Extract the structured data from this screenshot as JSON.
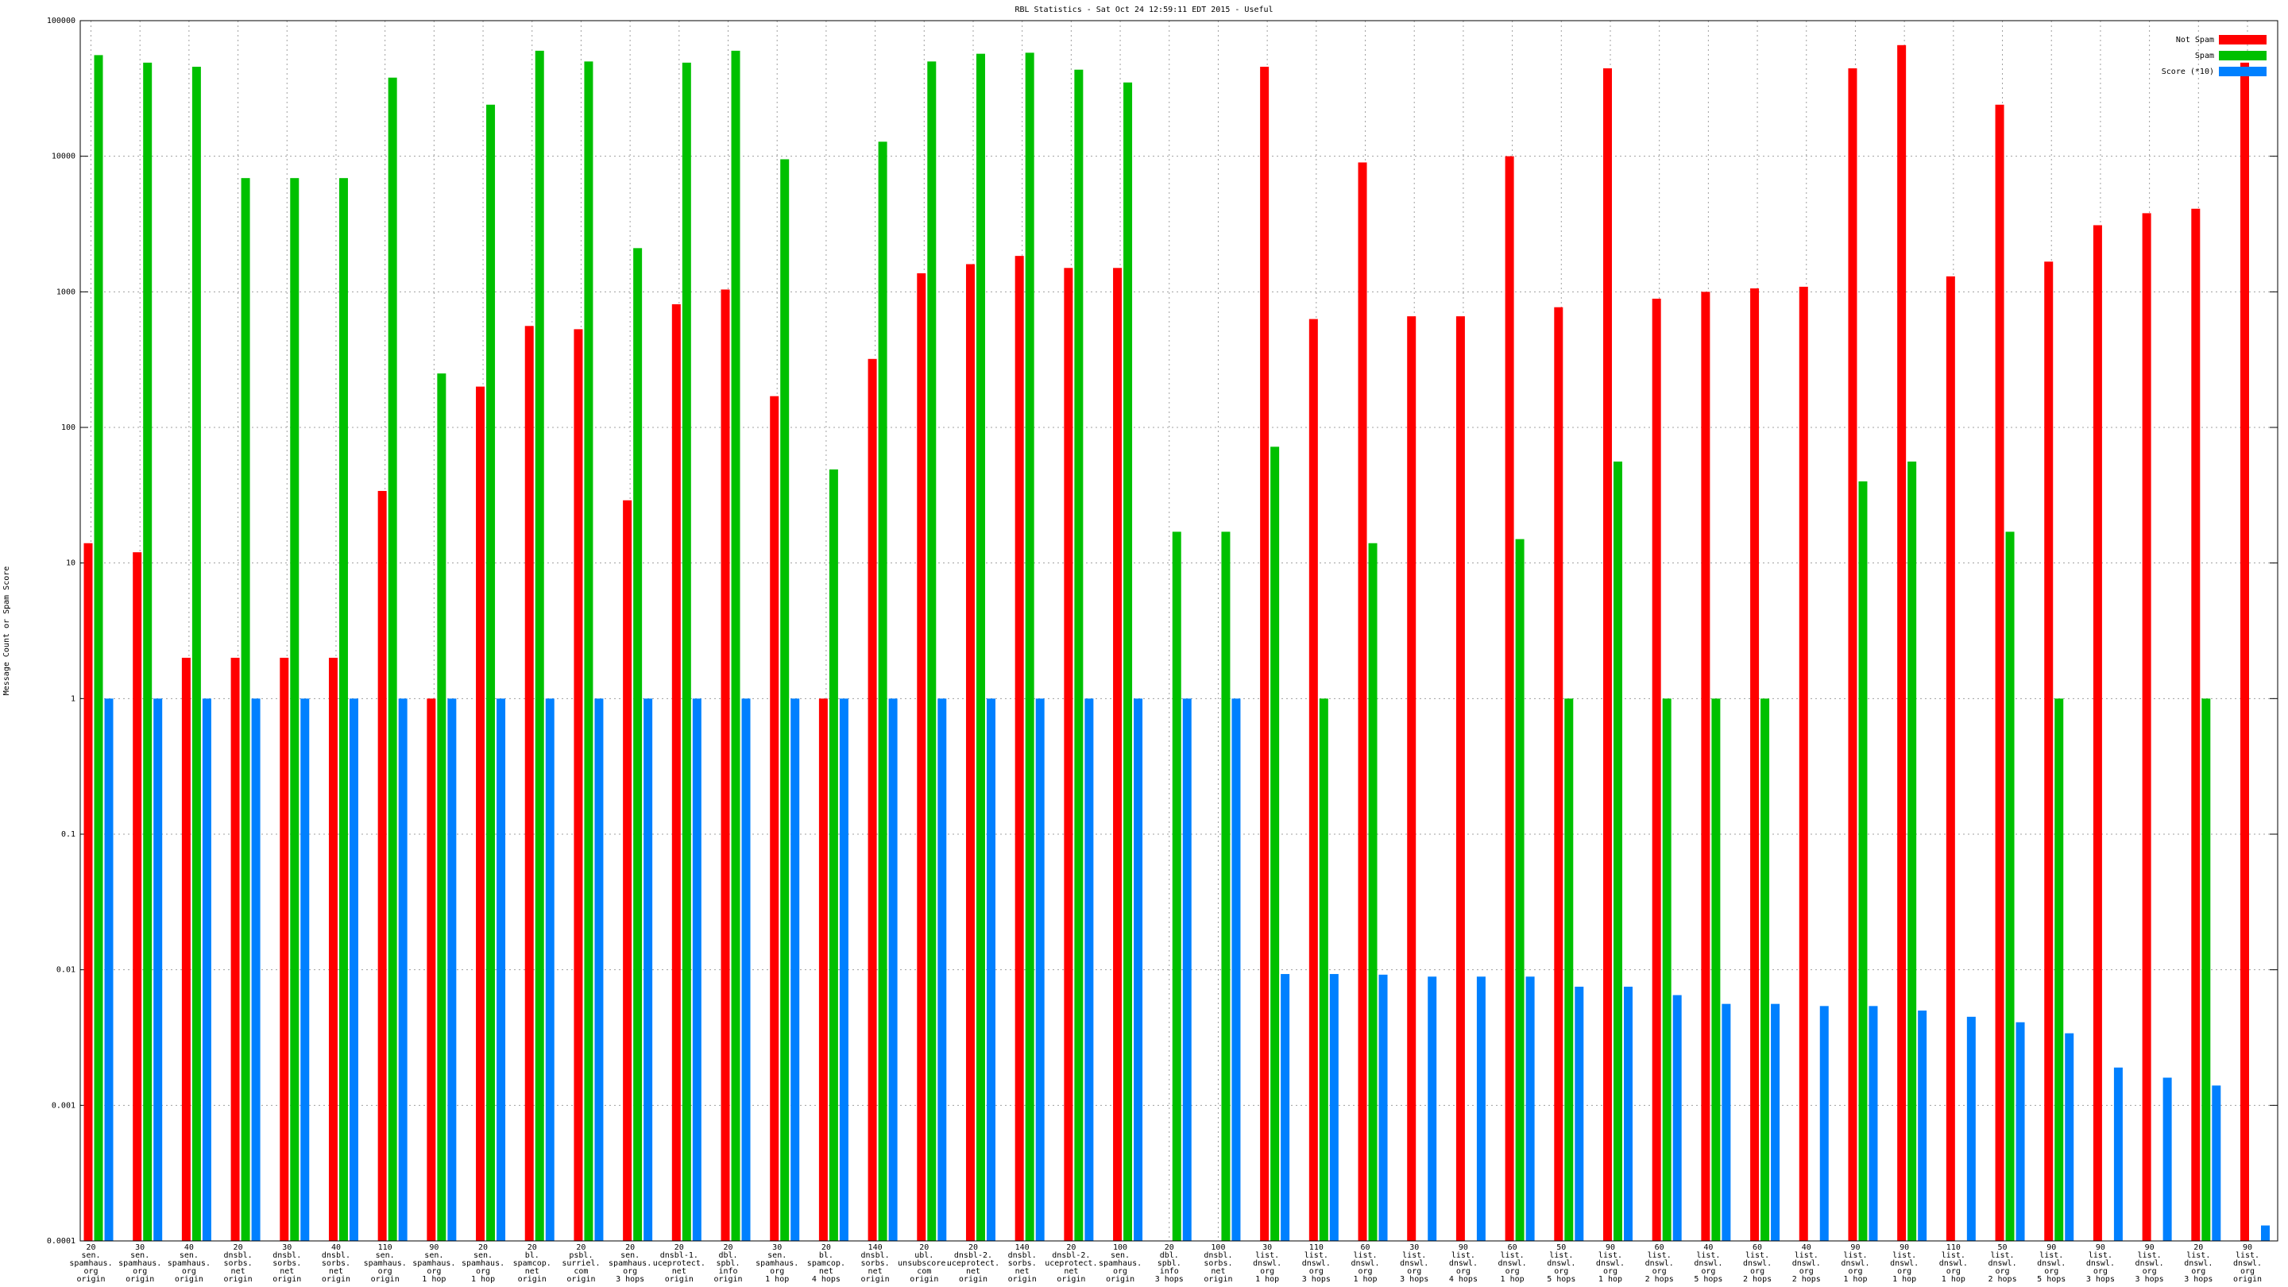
{
  "chart_data": {
    "type": "bar",
    "title": "RBL Statistics - Sat Oct 24 12:59:11 EDT 2015 - Useful",
    "y_label": "Message Count or Spam Score",
    "log_scale": true,
    "grid": true,
    "legend": "top-right",
    "ylim": [
      0.0001,
      100000
    ],
    "yticks": [
      0.0001,
      0.001,
      0.01,
      0.1,
      1,
      10,
      100,
      1000,
      10000,
      100000
    ],
    "categories": [
      "20\nsen.\nspamhaus.\norg\norigin",
      "30\nsen.\nspamhaus.\norg\norigin",
      "40\nsen.\nspamhaus.\norg\norigin",
      "20\ndnsbl.\nsorbs.\nnet\norigin",
      "30\ndnsbl.\nsorbs.\nnet\norigin",
      "40\ndnsbl.\nsorbs.\nnet\norigin",
      "110\nsen.\nspamhaus.\norg\norigin",
      "90\nsen.\nspamhaus.\norg\n1 hop",
      "20\nsen.\nspamhaus.\norg\n1 hop",
      "20\nbl.\nspamcop.\nnet\norigin",
      "20\npsbl.\nsurriel.\ncom\norigin",
      "20\nsen.\nspamhaus.\norg\n3 hops",
      "20\ndnsbl-1.\nuceprotect.\nnet\norigin",
      "20\ndbl.\nspbl.\ninfo\norigin",
      "30\nsen.\nspamhaus.\norg\n1 hop",
      "20\nbl.\nspamcop.\nnet\n4 hops",
      "140\ndnsbl.\nsorbs.\nnet\norigin",
      "20\nubl.\nunsubscore.\ncom\norigin",
      "20\ndnsbl-2.\nuceprotect.\nnet\norigin",
      "140\ndnsbl.\nsorbs.\nnet\norigin",
      "20\ndnsbl-2.\nuceprotect.\nnet\norigin",
      "100\nsen.\nspamhaus.\norg\norigin",
      "20\ndbl.\nspbl.\ninfo\n3 hops",
      "100\ndnsbl.\nsorbs.\nnet\norigin",
      "30\nlist.\ndnswl.\norg\n1 hop",
      "110\nlist.\ndnswl.\norg\n3 hops",
      "60\nlist.\ndnswl.\norg\n1 hop",
      "30\nlist.\ndnswl.\norg\n3 hops",
      "90\nlist.\ndnswl.\norg\n4 hops",
      "60\nlist.\ndnswl.\norg\n1 hop",
      "50\nlist.\ndnswl.\norg\n5 hops",
      "90\nlist.\ndnswl.\norg\n1 hop",
      "60\nlist.\ndnswl.\norg\n2 hops",
      "40\nlist.\ndnswl.\norg\n5 hops",
      "60\nlist.\ndnswl.\norg\n2 hops",
      "40\nlist.\ndnswl.\norg\n2 hops",
      "90\nlist.\ndnswl.\norg\n1 hop",
      "90\nlist.\ndnswl.\norg\n1 hop",
      "110\nlist.\ndnswl.\norg\n1 hop",
      "50\nlist.\ndnswl.\norg\n2 hops",
      "90\nlist.\ndnswl.\norg\n5 hops",
      "90\nlist.\ndnswl.\norg\n3 hops",
      "90\nlist.\ndnswl.\norg\n3 hops",
      "20\nlist.\ndnswl.\norg\n3 hops",
      "90\nlist.\ndnswl.\norg\norigin"
    ],
    "series": [
      {
        "name": "Not Spam",
        "color": "#ff0000",
        "values": [
          14,
          12,
          2,
          2,
          2,
          2,
          34,
          1,
          200,
          560,
          530,
          29,
          810,
          1040,
          170,
          1,
          320,
          1370,
          1600,
          1840,
          1500,
          1500,
          null,
          null,
          45700,
          630,
          9000,
          660,
          660,
          10000,
          770,
          44500,
          890,
          1000,
          1060,
          1090,
          44500,
          66000,
          1300,
          24000,
          1670,
          3100,
          3800,
          4100,
          49000
        ]
      },
      {
        "name": "Spam",
        "color": "#00c000",
        "values": [
          55700,
          49000,
          45700,
          6900,
          6900,
          6900,
          38000,
          250,
          24000,
          60000,
          50000,
          2100,
          49000,
          60000,
          9500,
          49,
          12800,
          50000,
          57000,
          58000,
          43500,
          35000,
          17,
          17,
          72,
          1,
          14,
          null,
          null,
          15,
          1,
          56,
          1,
          1,
          1,
          null,
          40,
          56,
          null,
          17,
          1,
          null,
          null,
          1,
          null
        ]
      },
      {
        "name": "Score (*10)",
        "color": "#0080ff",
        "values": [
          1,
          1,
          1,
          1,
          1,
          1,
          1,
          1,
          1,
          1,
          1,
          1,
          1,
          1,
          1,
          1,
          1,
          1,
          1,
          1,
          1,
          1,
          1,
          1,
          0.0093,
          0.0093,
          0.0092,
          0.0089,
          0.0089,
          0.0089,
          0.0075,
          0.0075,
          0.0065,
          0.0056,
          0.0056,
          0.0054,
          0.0054,
          0.005,
          0.0045,
          0.0041,
          0.0034,
          0.0019,
          0.0016,
          0.0014,
          0.00013
        ]
      }
    ]
  }
}
